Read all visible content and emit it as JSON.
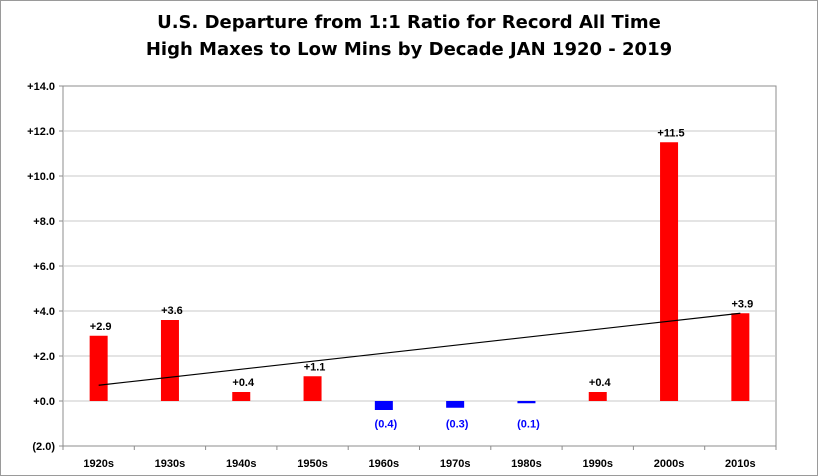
{
  "chart_data": {
    "type": "bar",
    "title_line1": "U.S. Departure from 1:1 Ratio for Record All Time",
    "title_line2": "High Maxes to Low Mins by Decade JAN 1920 - 2019",
    "categories": [
      "1920s",
      "1930s",
      "1940s",
      "1950s",
      "1960s",
      "1970s",
      "1980s",
      "1990s",
      "2000s",
      "2010s"
    ],
    "values": [
      2.9,
      3.6,
      0.4,
      1.1,
      -0.4,
      -0.3,
      -0.1,
      0.4,
      11.5,
      3.9
    ],
    "data_labels": [
      "+2.9",
      "+3.6",
      "+0.4",
      "+1.1",
      "(0.4)",
      "(0.3)",
      "(0.1)",
      "+0.4",
      "+11.5",
      "+3.9"
    ],
    "y_ticks": [
      14,
      12,
      10,
      8,
      6,
      4,
      2,
      0,
      -2
    ],
    "y_tick_labels": [
      "+14.0",
      "+12.0",
      "+10.0",
      "+8.0",
      "+6.0",
      "+4.0",
      "+2.0",
      "+0.0",
      "(2.0)"
    ],
    "ylim": [
      -2,
      14
    ],
    "xlabel": "",
    "ylabel": "",
    "grid": "horizontal",
    "legend": "none",
    "trendline": {
      "start": 0.7,
      "end": 3.9
    },
    "colors": {
      "positive": "#ff0000",
      "negative": "#0000ff",
      "grid": "#c8c8c8",
      "trend": "#000000"
    }
  }
}
